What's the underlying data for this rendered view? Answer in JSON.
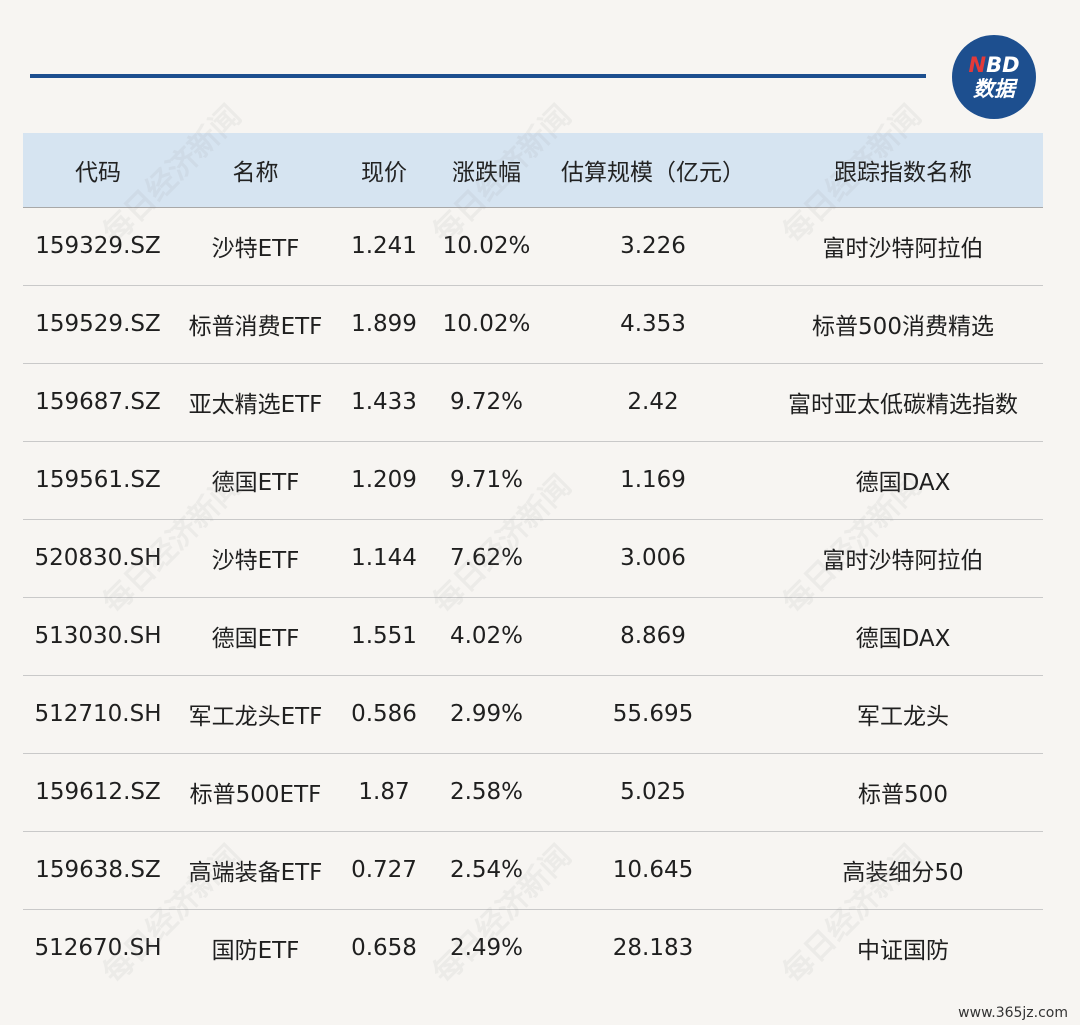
{
  "logo": {
    "line1_accent": "N",
    "line1_rest": "BD",
    "line2": "数据"
  },
  "table": {
    "headers": [
      "代码",
      "名称",
      "现价",
      "涨跌幅",
      "估算规模（亿元）",
      "跟踪指数名称"
    ],
    "rows": [
      [
        "159329.SZ",
        "沙特ETF",
        "1.241",
        "10.02%",
        "3.226",
        "富时沙特阿拉伯"
      ],
      [
        "159529.SZ",
        "标普消费ETF",
        "1.899",
        "10.02%",
        "4.353",
        "标普500消费精选"
      ],
      [
        "159687.SZ",
        "亚太精选ETF",
        "1.433",
        "9.72%",
        "2.42",
        "富时亚太低碳精选指数"
      ],
      [
        "159561.SZ",
        "德国ETF",
        "1.209",
        "9.71%",
        "1.169",
        "德国DAX"
      ],
      [
        "520830.SH",
        "沙特ETF",
        "1.144",
        "7.62%",
        "3.006",
        "富时沙特阿拉伯"
      ],
      [
        "513030.SH",
        "德国ETF",
        "1.551",
        "4.02%",
        "8.869",
        "德国DAX"
      ],
      [
        "512710.SH",
        "军工龙头ETF",
        "0.586",
        "2.99%",
        "55.695",
        "军工龙头"
      ],
      [
        "159612.SZ",
        "标普500ETF",
        "1.87",
        "2.58%",
        "5.025",
        "标普500"
      ],
      [
        "159638.SZ",
        "高端装备ETF",
        "0.727",
        "2.54%",
        "10.645",
        "高装细分50"
      ],
      [
        "512670.SH",
        "国防ETF",
        "0.658",
        "2.49%",
        "28.183",
        "中证国防"
      ]
    ]
  },
  "watermark_text": "每日经济新闻",
  "site_mark": "www.365jz.com",
  "colors": {
    "accent": "#1d4f8f",
    "header_bg": "#d6e4f1",
    "page_bg": "#f7f5f2"
  }
}
